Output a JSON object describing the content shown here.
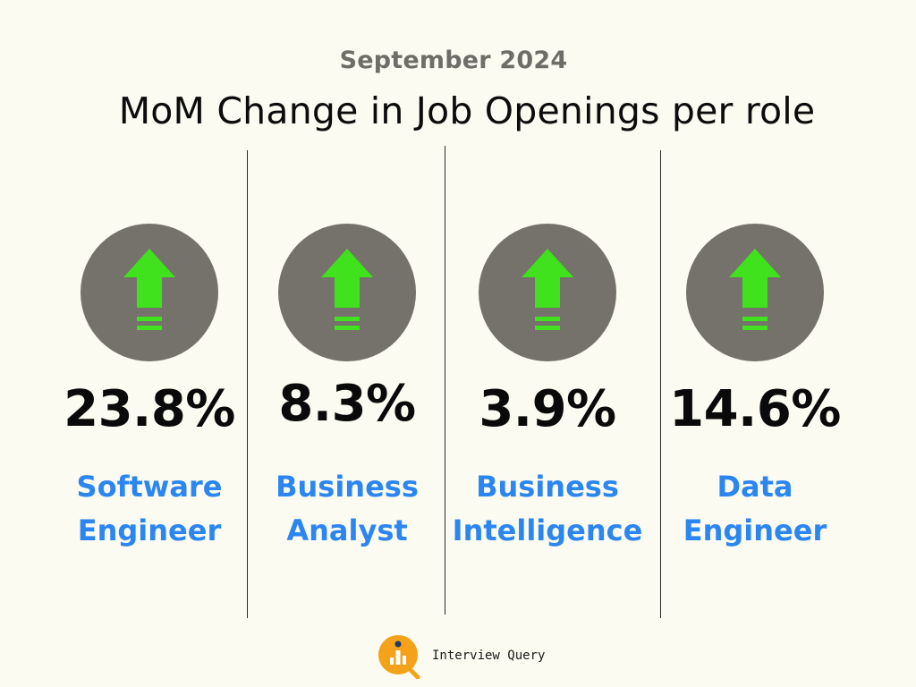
{
  "header": {
    "subtitle": "September 2024",
    "title": "MoM Change in Job Openings per role"
  },
  "roles": [
    {
      "value": "23.8%",
      "line1": "Software",
      "line2": "Engineer",
      "trend_icon": "arrow-up-icon"
    },
    {
      "value": "8.3%",
      "line1": "Business",
      "line2": "Analyst",
      "trend_icon": "arrow-up-icon"
    },
    {
      "value": "3.9%",
      "line1": "Business",
      "line2": "Intelligence",
      "trend_icon": "arrow-up-icon"
    },
    {
      "value": "14.6%",
      "line1": "Data",
      "line2": "Engineer",
      "trend_icon": "arrow-up-icon"
    }
  ],
  "footer": {
    "brand": "Interview Query",
    "logo_icon": "interview-query-logo"
  },
  "colors": {
    "background": "#fbfbf1",
    "circle": "#75716b",
    "arrow": "#3fe21c",
    "role_text": "#2b86f2",
    "logo_orange": "#f5a21b"
  }
}
